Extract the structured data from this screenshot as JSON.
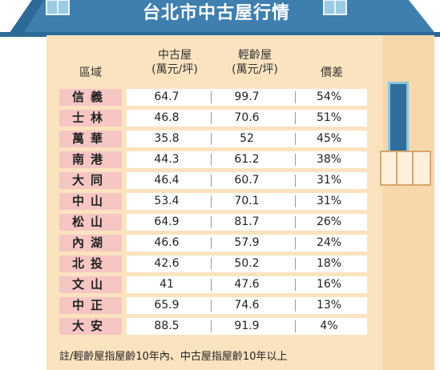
{
  "title": "台北市中古屋行情",
  "headers": {
    "region": "區域",
    "old_house": "中古屋",
    "old_house_unit": "(萬元/坪)",
    "new_house": "輕齡屋",
    "new_house_unit": "(萬元/坪)",
    "gap": "價差"
  },
  "rows": [
    {
      "region": "信義",
      "old": "64.7",
      "new": "99.7",
      "gap": "54%"
    },
    {
      "region": "士林",
      "old": "46.8",
      "new": "70.6",
      "gap": "51%"
    },
    {
      "region": "萬華",
      "old": "35.8",
      "new": "52",
      "gap": "45%"
    },
    {
      "region": "南港",
      "old": "44.3",
      "new": "61.2",
      "gap": "38%"
    },
    {
      "region": "大同",
      "old": "46.4",
      "new": "60.7",
      "gap": "31%"
    },
    {
      "region": "中山",
      "old": "53.4",
      "new": "70.1",
      "gap": "31%"
    },
    {
      "region": "松山",
      "old": "64.9",
      "new": "81.7",
      "gap": "26%"
    },
    {
      "region": "內湖",
      "old": "46.6",
      "new": "57.9",
      "gap": "24%"
    },
    {
      "region": "北投",
      "old": "42.6",
      "new": "50.2",
      "gap": "18%"
    },
    {
      "region": "文山",
      "old": "41",
      "new": "47.6",
      "gap": "16%"
    },
    {
      "region": "中正",
      "old": "65.9",
      "new": "74.6",
      "gap": "13%"
    },
    {
      "region": "大安",
      "old": "88.5",
      "new": "91.9",
      "gap": "4%"
    }
  ],
  "note": "註/輕齡屋指屋齡10年內、中古屋指屋齡10年以上",
  "colors": {
    "roof": "#3f7fb0",
    "wall": "#fbe3bf",
    "region_bg": "#f6c6c2"
  }
}
